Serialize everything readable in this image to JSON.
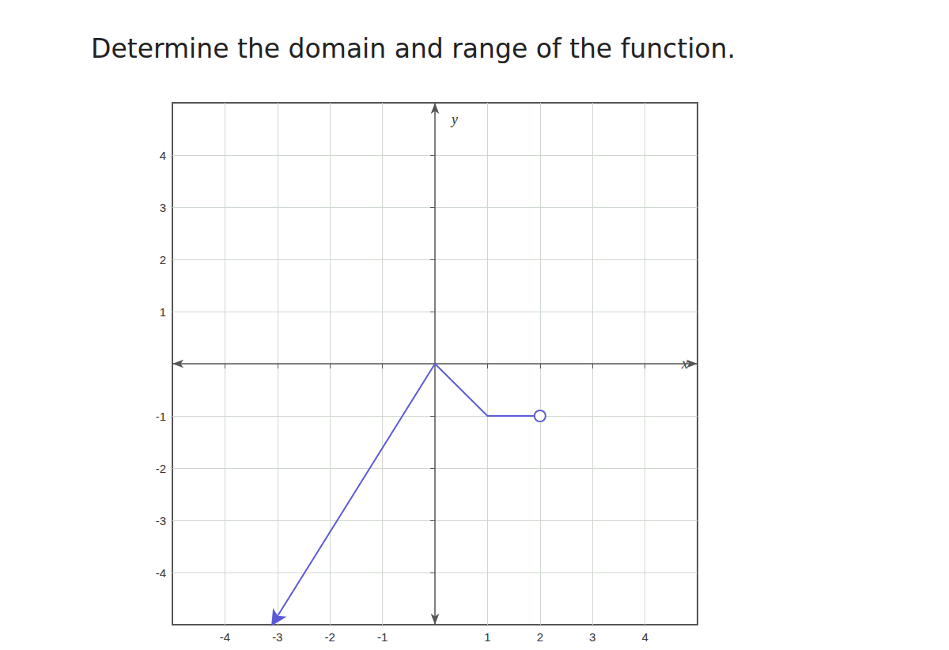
{
  "chart_data": {
    "type": "line",
    "title": "Determine the domain and range of the function.",
    "xlabel": "x",
    "ylabel": "y",
    "x": [
      -3.1,
      0,
      1,
      2
    ],
    "values": [
      -5,
      0,
      -1,
      -1
    ],
    "color": "#5b5bd6",
    "marker": "emptyCircle",
    "xlim": [
      -5,
      5
    ],
    "ylim": [
      -5,
      5
    ],
    "xticks": [
      -4,
      -3,
      -2,
      -1,
      1,
      2,
      3,
      4
    ],
    "yticks": [
      -4,
      -3,
      -2,
      -1,
      1,
      2,
      3,
      4
    ],
    "grid": true
  }
}
